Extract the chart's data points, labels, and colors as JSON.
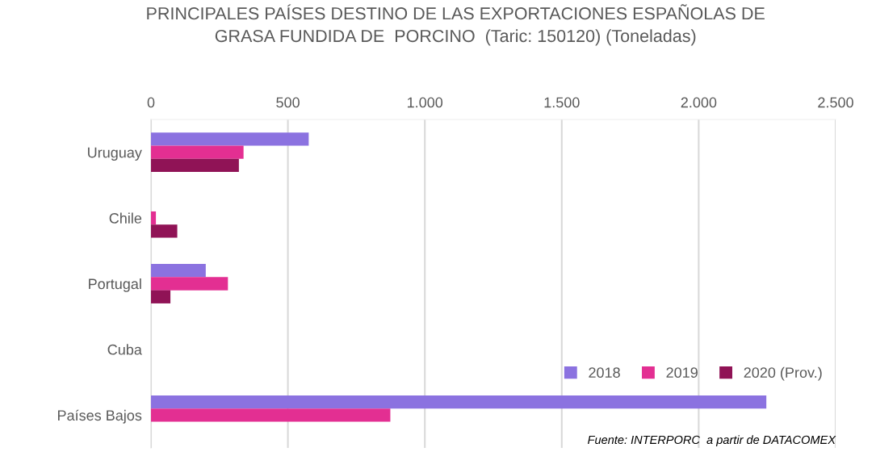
{
  "chart_data": {
    "type": "bar",
    "orientation": "horizontal",
    "title": "PRINCIPALES PAÍSES DESTINO DE LAS EXPORTACIONES ESPAÑOLAS DE\nGRASA FUNDIDA DE  PORCINO  (Taric: 150120) (Toneladas)",
    "categories": [
      "Uruguay",
      "Chile",
      "Portugal",
      "Cuba",
      "Países Bajos"
    ],
    "series": [
      {
        "name": "2018",
        "color": "#8b72e0",
        "values": [
          576,
          null,
          200,
          null,
          2247
        ]
      },
      {
        "name": "2019",
        "color": "#e32f92",
        "values": [
          338,
          18,
          281,
          null,
          874
        ]
      },
      {
        "name": "2020 (Prov.)",
        "color": "#901356",
        "values": [
          321,
          96,
          71,
          null,
          null
        ]
      }
    ],
    "xlim": [
      0,
      2500
    ],
    "xticks": [
      0,
      500,
      {
        "value": 1000,
        "label": "1.000"
      },
      {
        "value": 1500,
        "label": "1.500"
      },
      {
        "value": 2000,
        "label": "2.000"
      },
      {
        "value": 2500,
        "label": "2.500"
      }
    ],
    "grid": "x",
    "legend": "bottom right",
    "annotations": [
      "Fuente: INTERPORC  a partir de DATACOMEX"
    ]
  }
}
